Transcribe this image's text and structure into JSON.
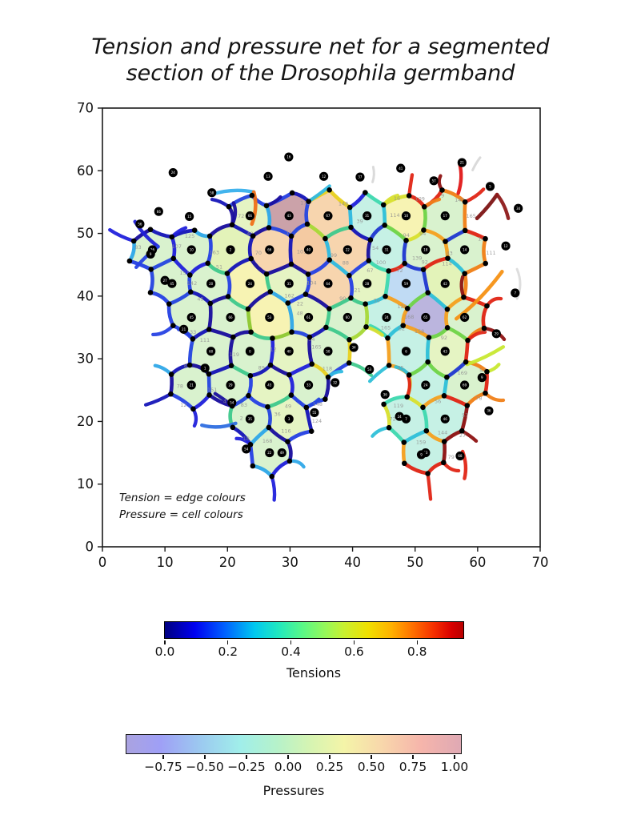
{
  "title": {
    "line1": "Tension and pressure net for a segmented",
    "line2": "section of the Drosophila germband"
  },
  "annotation": {
    "line1": "Tension = edge colours",
    "line2": "Pressure = cell colours"
  },
  "axes": {
    "x_range": [
      0,
      70
    ],
    "y_range": [
      0,
      70
    ],
    "x_ticks": [
      "0",
      "10",
      "20",
      "30",
      "40",
      "50",
      "60",
      "70"
    ],
    "x_tick_values": [
      0,
      10,
      20,
      30,
      40,
      50,
      60,
      70
    ],
    "y_ticks": [
      "0",
      "10",
      "20",
      "30",
      "40",
      "50",
      "60",
      "70"
    ],
    "y_tick_values": [
      0,
      10,
      20,
      30,
      40,
      50,
      60,
      70
    ]
  },
  "tension_colorbar": {
    "label": "Tensions",
    "ticks": [
      "0.0",
      "0.2",
      "0.4",
      "0.6",
      "0.8"
    ],
    "tick_values": [
      0.0,
      0.2,
      0.4,
      0.6,
      0.8
    ],
    "range": [
      0.0,
      0.95
    ],
    "colormap": "jet"
  },
  "pressure_colorbar": {
    "label": "Pressures",
    "ticks": [
      "−0.75",
      "−0.50",
      "−0.25",
      "0.00",
      "0.25",
      "0.50",
      "0.75",
      "1.00"
    ],
    "tick_values": [
      -0.75,
      -0.5,
      -0.25,
      0.0,
      0.25,
      0.5,
      0.75,
      1.0
    ],
    "range": [
      -0.98,
      1.04
    ],
    "colormap": "pastel-jet"
  },
  "chart_data": {
    "type": "network",
    "description": "Vertex-model cell mesh: edge colours = tensions (jet 0-0.95), cell fill colours = pressures (pastel jet -0.98 to 1.04); black dots at cell centres and vertices",
    "hex_radius": 3.6,
    "n_cells": 49,
    "tension_range": [
      0,
      0.95
    ],
    "pressure_range": [
      -0.98,
      1.04
    ],
    "fill_colors": {
      "g": "#d7f1cb",
      "g2": "#e4f3c0",
      "y": "#f7f2af",
      "s": "#f7d3aa",
      "s2": "#f3c79d",
      "c": "#c3f0e4",
      "b": "#bdd9f3",
      "lv": "#b7b1dc",
      "mv": "#c89da4",
      "yg": "#e1f2b5"
    },
    "cells": [
      [
        26.72,
        15,
        "g"
      ],
      [
        51.68,
        15,
        "c"
      ],
      [
        23.6,
        20.4,
        "g"
      ],
      [
        29.84,
        20.4,
        "g2"
      ],
      [
        48.56,
        20.4,
        "c"
      ],
      [
        54.8,
        20.4,
        "c"
      ],
      [
        14.24,
        25.8,
        "g"
      ],
      [
        20.48,
        25.8,
        "g"
      ],
      [
        26.72,
        25.8,
        "g2"
      ],
      [
        32.96,
        25.8,
        "g"
      ],
      [
        51.68,
        25.8,
        "c"
      ],
      [
        57.92,
        25.8,
        "g"
      ],
      [
        17.36,
        31.2,
        "g"
      ],
      [
        23.6,
        31.2,
        "g"
      ],
      [
        29.84,
        31.2,
        "g2"
      ],
      [
        36.08,
        31.2,
        "g"
      ],
      [
        48.56,
        31.2,
        "c"
      ],
      [
        54.8,
        31.2,
        "g2"
      ],
      [
        14.24,
        36.6,
        "g"
      ],
      [
        20.48,
        36.6,
        "g"
      ],
      [
        26.72,
        36.6,
        "y"
      ],
      [
        32.96,
        36.6,
        "g2"
      ],
      [
        39.2,
        36.6,
        "g"
      ],
      [
        45.44,
        36.6,
        "c"
      ],
      [
        51.68,
        36.6,
        "lv"
      ],
      [
        57.92,
        36.6,
        "g"
      ],
      [
        11.12,
        42,
        "g"
      ],
      [
        17.36,
        42,
        "g"
      ],
      [
        23.6,
        42,
        "y"
      ],
      [
        29.84,
        42,
        "g2"
      ],
      [
        36.08,
        42,
        "s"
      ],
      [
        42.32,
        42,
        "g2"
      ],
      [
        48.56,
        42,
        "b"
      ],
      [
        54.8,
        42,
        "yg"
      ],
      [
        8,
        47.4,
        "g"
      ],
      [
        14.24,
        47.4,
        "g"
      ],
      [
        20.48,
        47.4,
        "yg"
      ],
      [
        26.72,
        47.4,
        "s"
      ],
      [
        32.96,
        47.4,
        "s2"
      ],
      [
        39.2,
        47.4,
        "s"
      ],
      [
        45.44,
        47.4,
        "c"
      ],
      [
        51.68,
        47.4,
        "g"
      ],
      [
        57.92,
        47.4,
        "g"
      ],
      [
        23.6,
        52.8,
        "g2"
      ],
      [
        29.84,
        52.8,
        "mv"
      ],
      [
        36.08,
        52.8,
        "s"
      ],
      [
        42.32,
        52.8,
        "c"
      ],
      [
        48.56,
        52.8,
        "y"
      ],
      [
        54.8,
        52.8,
        "g"
      ]
    ],
    "outer_dots": [
      [
        11.3,
        59.7
      ],
      [
        26.5,
        59.1
      ],
      [
        29.8,
        62.2
      ],
      [
        35.4,
        59.1
      ],
      [
        41.2,
        59.0
      ],
      [
        47.7,
        60.4
      ],
      [
        53.0,
        58.4
      ],
      [
        57.5,
        61.3
      ],
      [
        62.0,
        57.5
      ],
      [
        66.5,
        54.0
      ],
      [
        64.5,
        48.0
      ],
      [
        66.0,
        40.5
      ],
      [
        63.0,
        34.0
      ],
      [
        60.7,
        27.0
      ],
      [
        61.8,
        21.7
      ],
      [
        57.2,
        14.5
      ],
      [
        51.0,
        14.7
      ],
      [
        47.5,
        20.8
      ],
      [
        45.2,
        24.3
      ],
      [
        42.7,
        28.3
      ],
      [
        40.2,
        31.8
      ],
      [
        37.2,
        26.2
      ],
      [
        33.9,
        21.4
      ],
      [
        28.7,
        15.0
      ],
      [
        23.0,
        15.6
      ],
      [
        20.7,
        23.0
      ],
      [
        16.4,
        28.5
      ],
      [
        13.0,
        34.7
      ],
      [
        10.0,
        42.5
      ],
      [
        7.7,
        46.7
      ],
      [
        6.0,
        51.5
      ],
      [
        9.0,
        53.5
      ],
      [
        13.9,
        52.7
      ],
      [
        17.5,
        56.5
      ]
    ],
    "extra_strokes": [
      [
        [
          17.4,
          56.2
        ],
        [
          20.8,
          57.3
        ],
        [
          24.2,
          56.6
        ],
        "#38b0ec",
        4.4
      ],
      [
        [
          24.2,
          56.6
        ],
        [
          24.9,
          54.1
        ],
        [
          23.9,
          51.5
        ],
        "#f07018",
        4.6
      ],
      [
        [
          59.9,
          52.4
        ],
        [
          61.8,
          54.3
        ],
        [
          63.1,
          56.2
        ],
        "#7d1414",
        4.6
      ],
      [
        [
          63.1,
          56.2
        ],
        [
          64.4,
          54.6
        ],
        [
          64.9,
          52.4
        ],
        "#8e1a1a",
        4.4
      ],
      [
        [
          56.9,
          56.4
        ],
        [
          57.7,
          58.9
        ],
        [
          57.1,
          61.2
        ],
        "#e01818",
        4.4
      ],
      [
        [
          56.6,
          36.4
        ],
        [
          60.4,
          39.2
        ],
        [
          63.9,
          43.9
        ],
        "#f59114",
        4.6
      ],
      [
        [
          58.3,
          29.1
        ],
        [
          61.2,
          30.1
        ],
        [
          64.1,
          31.9
        ],
        "#c8e830",
        4.4
      ],
      [
        [
          5.2,
          51.9
        ],
        [
          6.6,
          49.6
        ],
        [
          8.9,
          47.9
        ],
        "#2020d8",
        4.4
      ],
      [
        [
          5.4,
          44.6
        ],
        [
          6.9,
          46.4
        ],
        [
          8.9,
          47.9
        ],
        "#2742e4",
        4.4
      ],
      [
        [
          15.9,
          19.4
        ],
        [
          18.5,
          18.7
        ],
        [
          21.3,
          19.7
        ],
        "#2e6ee0",
        4.4
      ],
      [
        [
          57.6,
          15.2
        ],
        [
          58.4,
          13.0
        ],
        [
          57.9,
          10.9
        ],
        "#e02515",
        4.4
      ],
      [
        [
          66.3,
          44.3
        ],
        [
          67.3,
          41.9
        ],
        [
          66.3,
          39.6
        ],
        "#dcdcdc",
        3
      ],
      [
        [
          59.2,
          60.1
        ],
        [
          59.7,
          61.2
        ],
        [
          60.4,
          62.1
        ],
        "#d8d8d8",
        3
      ],
      [
        [
          43.2,
          58.2
        ],
        [
          43.6,
          59.4
        ],
        [
          43.3,
          60.6
        ],
        "#d8d8d8",
        3
      ]
    ],
    "edge_palette": {
      "dark_blues": [
        "#1616b8",
        "#2121dc",
        "#1a0f9e",
        "#2742e4"
      ],
      "medium_blue": "#2546e0",
      "sky": "#2fa8e8",
      "teal_green": "#3fc98c",
      "cyan": "#2fc0d8",
      "green": "#6fd348",
      "yellow": "#d8e030",
      "orange": "#f5a020",
      "red": "#e02515",
      "dark_red": "#8e1212"
    }
  }
}
